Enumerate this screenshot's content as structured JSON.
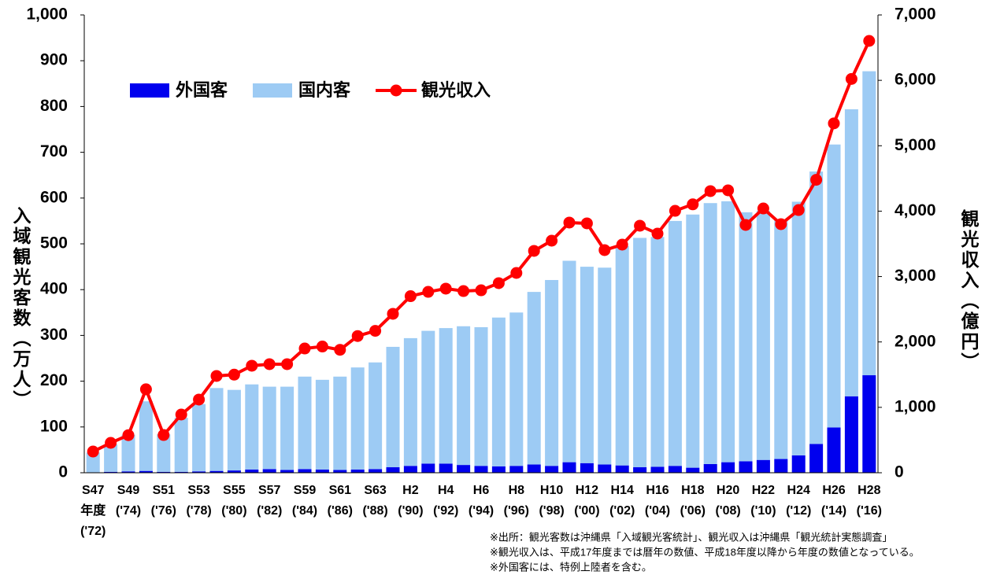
{
  "chart_data": {
    "type": "bar",
    "categories": [
      "S47\n年度\n('72)",
      null,
      "S49\n('74)",
      null,
      "S51\n('76)",
      null,
      "S53\n('78)",
      null,
      "S55\n('80)",
      null,
      "S57\n('82)",
      null,
      "S59\n('84)",
      null,
      "S61\n('86)",
      null,
      "S63\n('88)",
      null,
      "H2\n('90)",
      null,
      "H4\n('92)",
      null,
      "H6\n('94)",
      null,
      "H8\n('96)",
      null,
      "H10\n('98)",
      null,
      "H12\n('00)",
      null,
      "H14\n('02)",
      null,
      "H16\n('04)",
      null,
      "H18\n('06)",
      null,
      "H20\n('08)",
      null,
      "H22\n('10)",
      null,
      "H24\n('12)",
      null,
      "H26\n('14)",
      null,
      "H28\n('16)"
    ],
    "series": [
      {
        "name": "外国客",
        "color": "#0000ee",
        "stack": true,
        "values": [
          1,
          2,
          3,
          4,
          2,
          2,
          3,
          4,
          5,
          7,
          8,
          6,
          8,
          7,
          6,
          7,
          8,
          12,
          15,
          20,
          20,
          17,
          15,
          14,
          15,
          18,
          15,
          23,
          21,
          18,
          16,
          12,
          13,
          15,
          11,
          19,
          23,
          25,
          28,
          30,
          38,
          63,
          99,
          167,
          213
        ]
      },
      {
        "name": "国内客",
        "color": "#9dcbf4",
        "stack": true,
        "values": [
          43,
          60,
          80,
          152,
          82,
          118,
          147,
          181,
          176,
          186,
          180,
          182,
          202,
          196,
          204,
          223,
          233,
          263,
          279,
          290,
          296,
          303,
          303,
          325,
          335,
          377,
          406,
          440,
          429,
          430,
          479,
          501,
          502,
          535,
          553,
          570,
          570,
          544,
          544,
          523,
          554,
          595,
          618,
          627,
          664
        ]
      },
      {
        "name": "観光収入",
        "color": "#ff0000",
        "type": "line",
        "axis": "y2",
        "values": [
          324,
          457,
          575,
          1276,
          577,
          890,
          1119,
          1480,
          1500,
          1636,
          1660,
          1660,
          1900,
          1930,
          1880,
          2090,
          2170,
          2430,
          2700,
          2766,
          2815,
          2778,
          2790,
          2899,
          3055,
          3392,
          3548,
          3825,
          3813,
          3404,
          3488,
          3777,
          3657,
          4005,
          4104,
          4306,
          4318,
          3789,
          4041,
          3801,
          4017,
          4479,
          5342,
          6022,
          6603
        ]
      }
    ],
    "ylabel": "入域観光客数（万人）",
    "y2label": "観光収入（億円）",
    "ylim": [
      0,
      1000
    ],
    "yticks": [
      0,
      100,
      200,
      300,
      400,
      500,
      600,
      700,
      800,
      900,
      {
        "value": 1000,
        "label": "1,000"
      }
    ],
    "y2lim": [
      0,
      7000
    ],
    "y2ticks": [
      0,
      {
        "value": 1000,
        "label": "1,000"
      },
      {
        "value": 2000,
        "label": "2,000"
      },
      {
        "value": 3000,
        "label": "3,000"
      },
      {
        "value": 4000,
        "label": "4,000"
      },
      {
        "value": 5000,
        "label": "5,000"
      },
      {
        "value": 6000,
        "label": "6,000"
      },
      {
        "value": 7000,
        "label": "7,000"
      }
    ],
    "legend": "top-left",
    "notes": [
      "※出所：観光客数は沖縄県「入域観光客統計」、観光収入は沖縄県「観光統計実態調査」",
      "※観光収入は、平成17年度までは暦年の数値、平成18年度以降から年度の数値となっている。",
      "※外国客には、特例上陸者を含む。"
    ]
  }
}
